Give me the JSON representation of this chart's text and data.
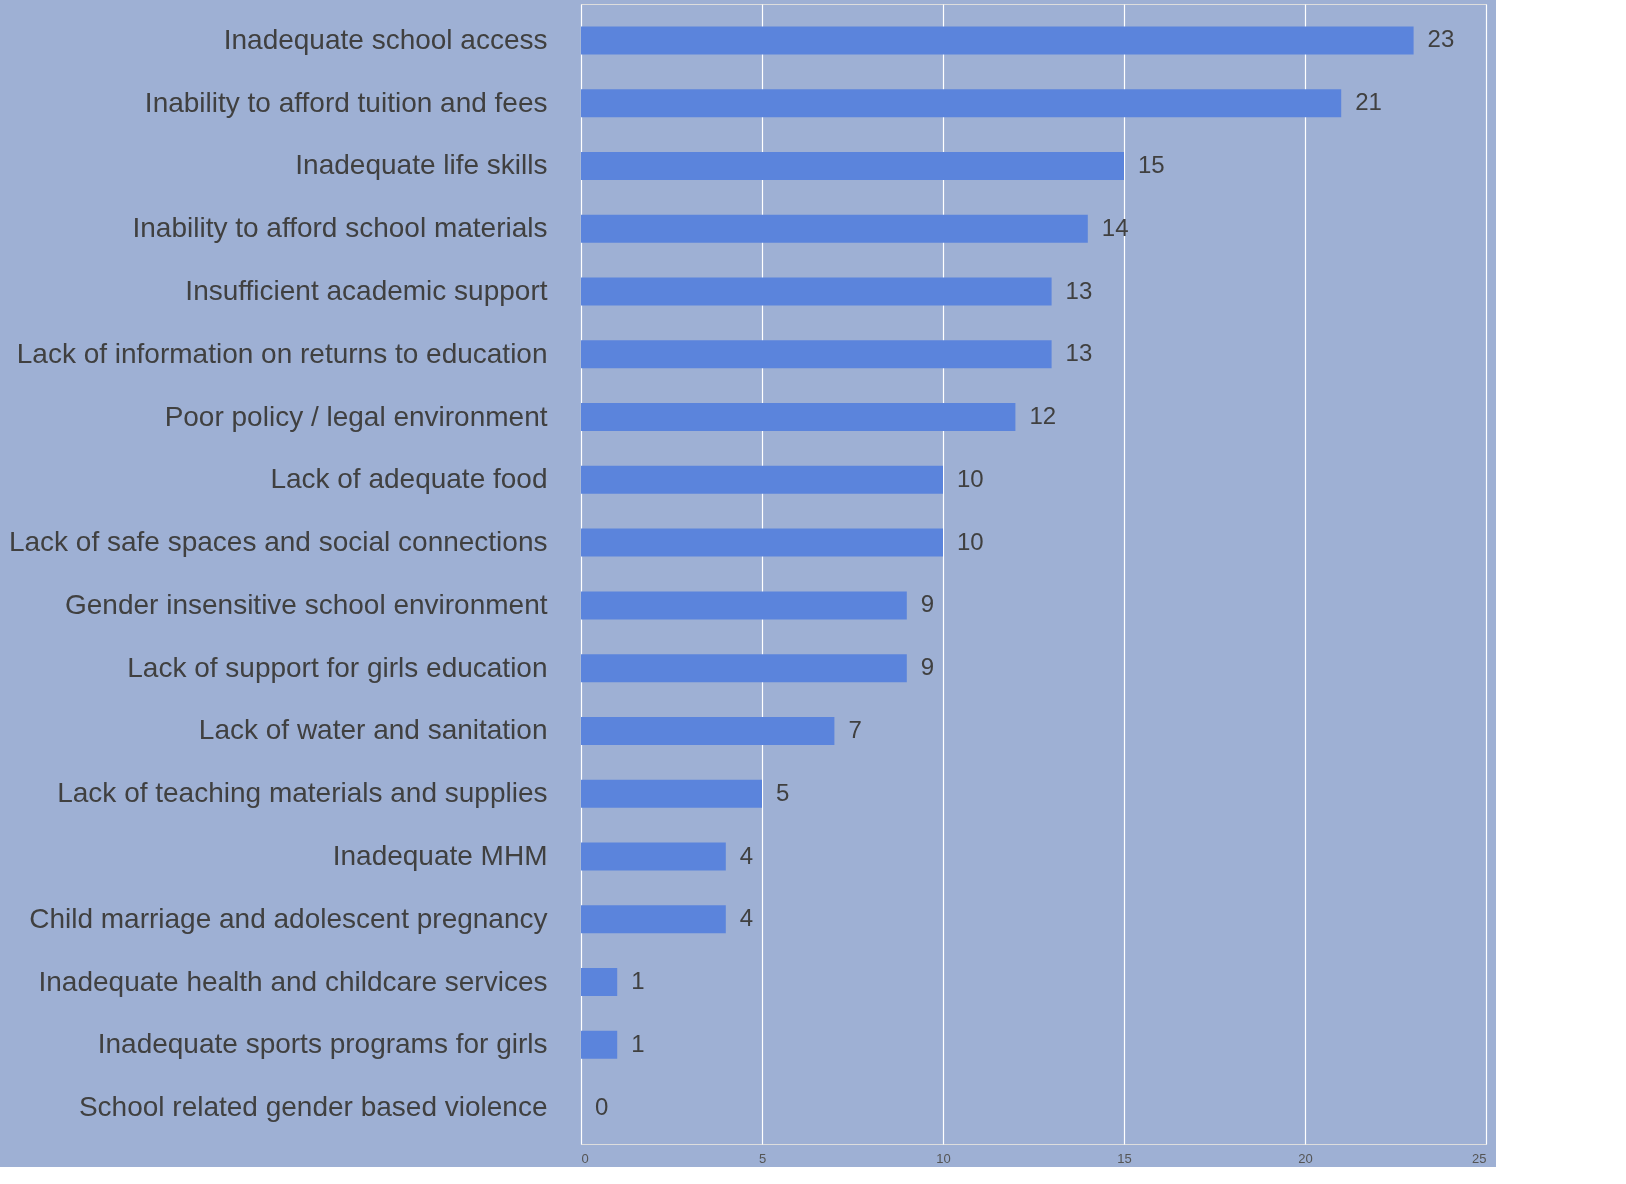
{
  "chart_data": {
    "type": "bar",
    "orientation": "horizontal",
    "categories": [
      "Inadequate school access",
      "Inability to afford tuition and fees",
      "Inadequate life skills",
      "Inability to afford school materials",
      "Insufficient academic support",
      "Lack of information on returns to education",
      "Poor policy / legal environment",
      "Lack of adequate food",
      "Lack of safe spaces and social connections",
      "Gender insensitive school environment",
      "Lack of support for girls education",
      "Lack of water and sanitation",
      "Lack of teaching materials and supplies",
      "Inadequate MHM",
      "Child marriage and adolescent pregnancy",
      "Inadequate health and childcare services",
      "Inadequate sports programs for girls",
      "School related gender based violence"
    ],
    "values": [
      23,
      21,
      15,
      14,
      13,
      13,
      12,
      10,
      10,
      9,
      9,
      7,
      5,
      4,
      4,
      1,
      1,
      0
    ],
    "color": "#5b84dc",
    "xlim": [
      0,
      25
    ],
    "xticks": [
      0,
      5,
      10,
      15,
      20,
      25
    ],
    "grid": "x",
    "data_labels": true
  }
}
